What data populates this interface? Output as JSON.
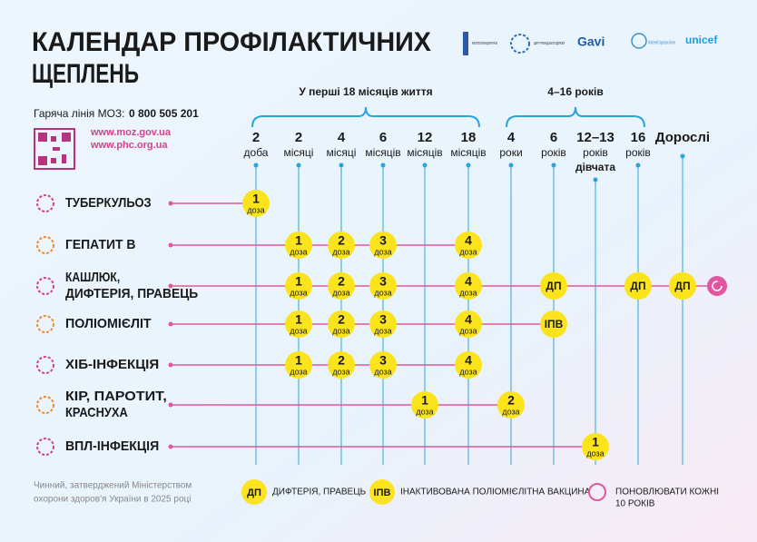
{
  "header": {
    "title": [
      "КАЛЕНДАР ПРОФІЛАКТИЧНИХ",
      "ЩЕПЛЕНЬ"
    ],
    "hotline_label": "Гаряча лінія МОЗ:",
    "hotline_number": "0 800 505 201",
    "links": [
      "www.moz.gov.ua",
      "www.phc.org.ua"
    ]
  },
  "logos": [
    "МІНІСТЕРСТВО ОХОРОНИ ЗДОРОВ'Я УКРАЇНИ",
    "ЦЕНТР ГРОМАДСЬКОГО ЗДОРОВ'Я",
    "Gavi",
    "World Health Organization Ukraine",
    "unicef"
  ],
  "groups": [
    "У перші 18 місяців життя",
    "4–16 років"
  ],
  "columns": [
    {
      "age": "2",
      "unit": "доба"
    },
    {
      "age": "2",
      "unit": "місяці"
    },
    {
      "age": "4",
      "unit": "місяці"
    },
    {
      "age": "6",
      "unit": "місяців"
    },
    {
      "age": "12",
      "unit": "місяців"
    },
    {
      "age": "18",
      "unit": "місяців"
    },
    {
      "age": "4",
      "unit": "роки"
    },
    {
      "age": "6",
      "unit": "років"
    },
    {
      "age": "12–13",
      "unit": "років",
      "note": "дівчата"
    },
    {
      "age": "16",
      "unit": "років"
    },
    {
      "age": "Дорослі"
    }
  ],
  "rows": [
    {
      "name": [
        "ТУБЕРКУЛЬОЗ"
      ],
      "doses": [
        {
          "label": "1",
          "unit": "доза"
        },
        null,
        null,
        null,
        null,
        null,
        null,
        null,
        null,
        null,
        null
      ]
    },
    {
      "name": [
        "ГЕПАТИТ В"
      ],
      "doses": [
        null,
        {
          "label": "1",
          "unit": "доза"
        },
        {
          "label": "2",
          "unit": "доза"
        },
        {
          "label": "3",
          "unit": "доза"
        },
        null,
        {
          "label": "4",
          "unit": "доза"
        },
        null,
        null,
        null,
        null,
        null
      ]
    },
    {
      "name": [
        "КАШЛЮК,",
        "ДИФТЕРІЯ, ПРАВЕЦЬ"
      ],
      "renew": true,
      "doses": [
        null,
        {
          "label": "1",
          "unit": "доза"
        },
        {
          "label": "2",
          "unit": "доза"
        },
        {
          "label": "3",
          "unit": "доза"
        },
        null,
        {
          "label": "4",
          "unit": "доза"
        },
        null,
        {
          "label": "ДП"
        },
        null,
        {
          "label": "ДП"
        },
        {
          "label": "ДП"
        }
      ]
    },
    {
      "name": [
        "ПОЛІОМІЄЛІТ"
      ],
      "doses": [
        null,
        {
          "label": "1",
          "unit": "доза"
        },
        {
          "label": "2",
          "unit": "доза"
        },
        {
          "label": "3",
          "unit": "доза"
        },
        null,
        {
          "label": "4",
          "unit": "доза"
        },
        null,
        {
          "label": "ІПВ"
        },
        null,
        null,
        null
      ]
    },
    {
      "name": [
        "ХІБ-ІНФЕКЦІЯ"
      ],
      "doses": [
        null,
        {
          "label": "1",
          "unit": "доза"
        },
        {
          "label": "2",
          "unit": "доза"
        },
        {
          "label": "3",
          "unit": "доза"
        },
        null,
        {
          "label": "4",
          "unit": "доза"
        },
        null,
        null,
        null,
        null,
        null
      ]
    },
    {
      "name": [
        "КІР, ПАРОТИТ,",
        "КРАСНУХА"
      ],
      "doses": [
        null,
        null,
        null,
        null,
        {
          "label": "1",
          "unit": "доза"
        },
        null,
        {
          "label": "2",
          "unit": "доза"
        },
        null,
        null,
        null,
        null
      ]
    },
    {
      "name": [
        "ВПЛ-ІНФЕКЦІЯ"
      ],
      "doses": [
        null,
        null,
        null,
        null,
        null,
        null,
        null,
        null,
        {
          "label": "1",
          "unit": "доза"
        },
        null,
        null
      ]
    }
  ],
  "legend": [
    {
      "symbol": "ДП",
      "text": "ДИФТЕРІЯ, ПРАВЕЦЬ"
    },
    {
      "symbol": "ІПВ",
      "text": "ІНАКТИВОВАНА ПОЛІОМІЄЛІТНА ВАКЦИНА"
    },
    {
      "text": [
        "ПОНОВЛЮВАТИ КОЖНІ",
        "10 РОКІВ"
      ]
    }
  ],
  "footer": [
    "Чинний, затверджений Міністерством",
    "охорони здоров'я України в 2025 році"
  ]
}
